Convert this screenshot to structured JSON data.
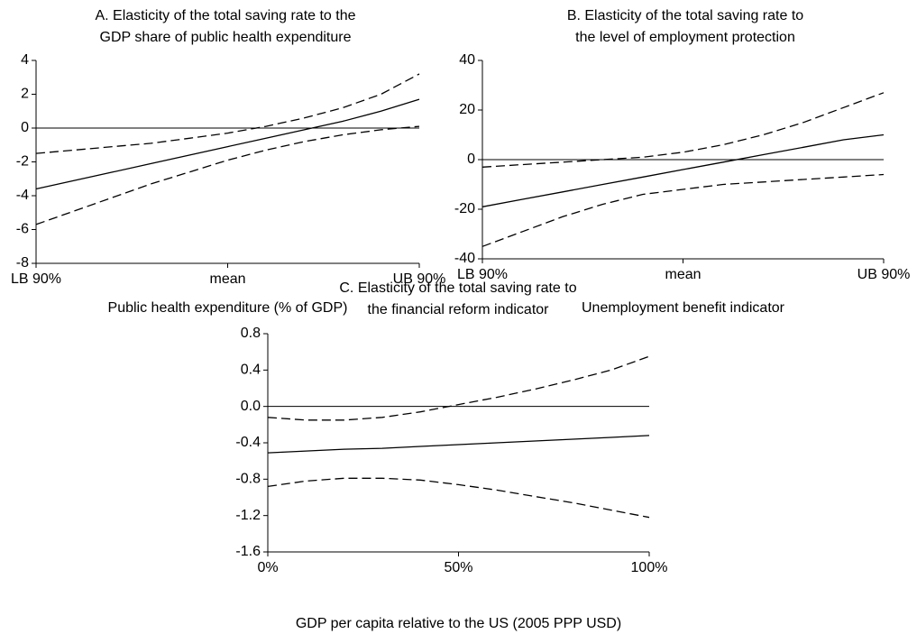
{
  "chart_data": [
    {
      "type": "line",
      "title": [
        "A.  Elasticity of the total saving rate to the",
        "GDP share of public health expenditure"
      ],
      "x_label": "Public health expenditure (% of GDP)",
      "categories": [
        "LB 90%",
        null,
        null,
        null,
        null,
        "mean",
        null,
        null,
        null,
        null,
        "UB 90%"
      ],
      "ylim": [
        -8,
        4
      ],
      "yticks": [
        -8,
        -6,
        -4,
        -2,
        0,
        2,
        4
      ],
      "reference_line": 0,
      "series": [
        {
          "color": "#000000",
          "dash": "dashed",
          "values": [
            -1.5,
            -1.3,
            -1.1,
            -0.9,
            -0.6,
            -0.3,
            0.1,
            0.6,
            1.2,
            2.0,
            3.2
          ]
        },
        {
          "color": "#000000",
          "dash": "solid",
          "values": [
            -3.6,
            -3.1,
            -2.6,
            -2.1,
            -1.6,
            -1.1,
            -0.6,
            -0.1,
            0.4,
            1.0,
            1.7
          ]
        },
        {
          "color": "#000000",
          "dash": "dashed",
          "values": [
            -5.7,
            -4.9,
            -4.1,
            -3.3,
            -2.6,
            -1.9,
            -1.3,
            -0.8,
            -0.4,
            -0.1,
            0.1
          ]
        }
      ]
    },
    {
      "type": "line",
      "title": [
        "B.  Elasticity of the total saving rate to",
        "the level of employment protection"
      ],
      "x_label": "Unemployment benefit indicator",
      "categories": [
        "LB 90%",
        null,
        null,
        null,
        null,
        "mean",
        null,
        null,
        null,
        null,
        "UB 90%"
      ],
      "ylim": [
        -40,
        40
      ],
      "yticks": [
        -40,
        -20,
        0,
        20,
        40
      ],
      "reference_line": 0,
      "series": [
        {
          "color": "#000000",
          "dash": "dashed",
          "values": [
            -3,
            -2,
            -1,
            0,
            1,
            3,
            6,
            10,
            15,
            21,
            27
          ]
        },
        {
          "color": "#000000",
          "dash": "solid",
          "values": [
            -19,
            -16,
            -13,
            -10,
            -7,
            -4,
            -1,
            2,
            5,
            8,
            10
          ]
        },
        {
          "color": "#000000",
          "dash": "dashed",
          "values": [
            -35,
            -29,
            -23,
            -18,
            -14,
            -12,
            -10,
            -9,
            -8,
            -7,
            -6
          ]
        }
      ]
    },
    {
      "type": "line",
      "title": [
        "C.  Elasticity of the total saving rate to",
        "the financial reform indicator"
      ],
      "x_label": "GDP per capita relative to the US (2005 PPP USD)",
      "x": [
        0,
        10,
        20,
        30,
        40,
        50,
        60,
        70,
        80,
        90,
        100
      ],
      "xlim": [
        0,
        100
      ],
      "xticks": [
        {
          "value": 0,
          "label": "0%"
        },
        {
          "value": 50,
          "label": "50%"
        },
        {
          "value": 100,
          "label": "100%"
        }
      ],
      "ylim": [
        -1.6,
        0.8
      ],
      "yticks": [
        -1.6,
        -1.2,
        -0.8,
        -0.4,
        {
          "value": 0,
          "label": "0.0"
        },
        0.4,
        0.8
      ],
      "reference_line": 0,
      "series": [
        {
          "color": "#000000",
          "dash": "dashed",
          "values": [
            -0.12,
            -0.15,
            -0.15,
            -0.12,
            -0.06,
            0.02,
            0.1,
            0.19,
            0.29,
            0.4,
            0.55
          ]
        },
        {
          "color": "#000000",
          "dash": "solid",
          "values": [
            -0.51,
            -0.49,
            -0.47,
            -0.46,
            -0.44,
            -0.42,
            -0.4,
            -0.38,
            -0.36,
            -0.34,
            -0.32
          ]
        },
        {
          "color": "#000000",
          "dash": "dashed",
          "values": [
            -0.88,
            -0.82,
            -0.79,
            -0.79,
            -0.81,
            -0.86,
            -0.92,
            -0.99,
            -1.06,
            -1.14,
            -1.22
          ]
        }
      ]
    }
  ]
}
